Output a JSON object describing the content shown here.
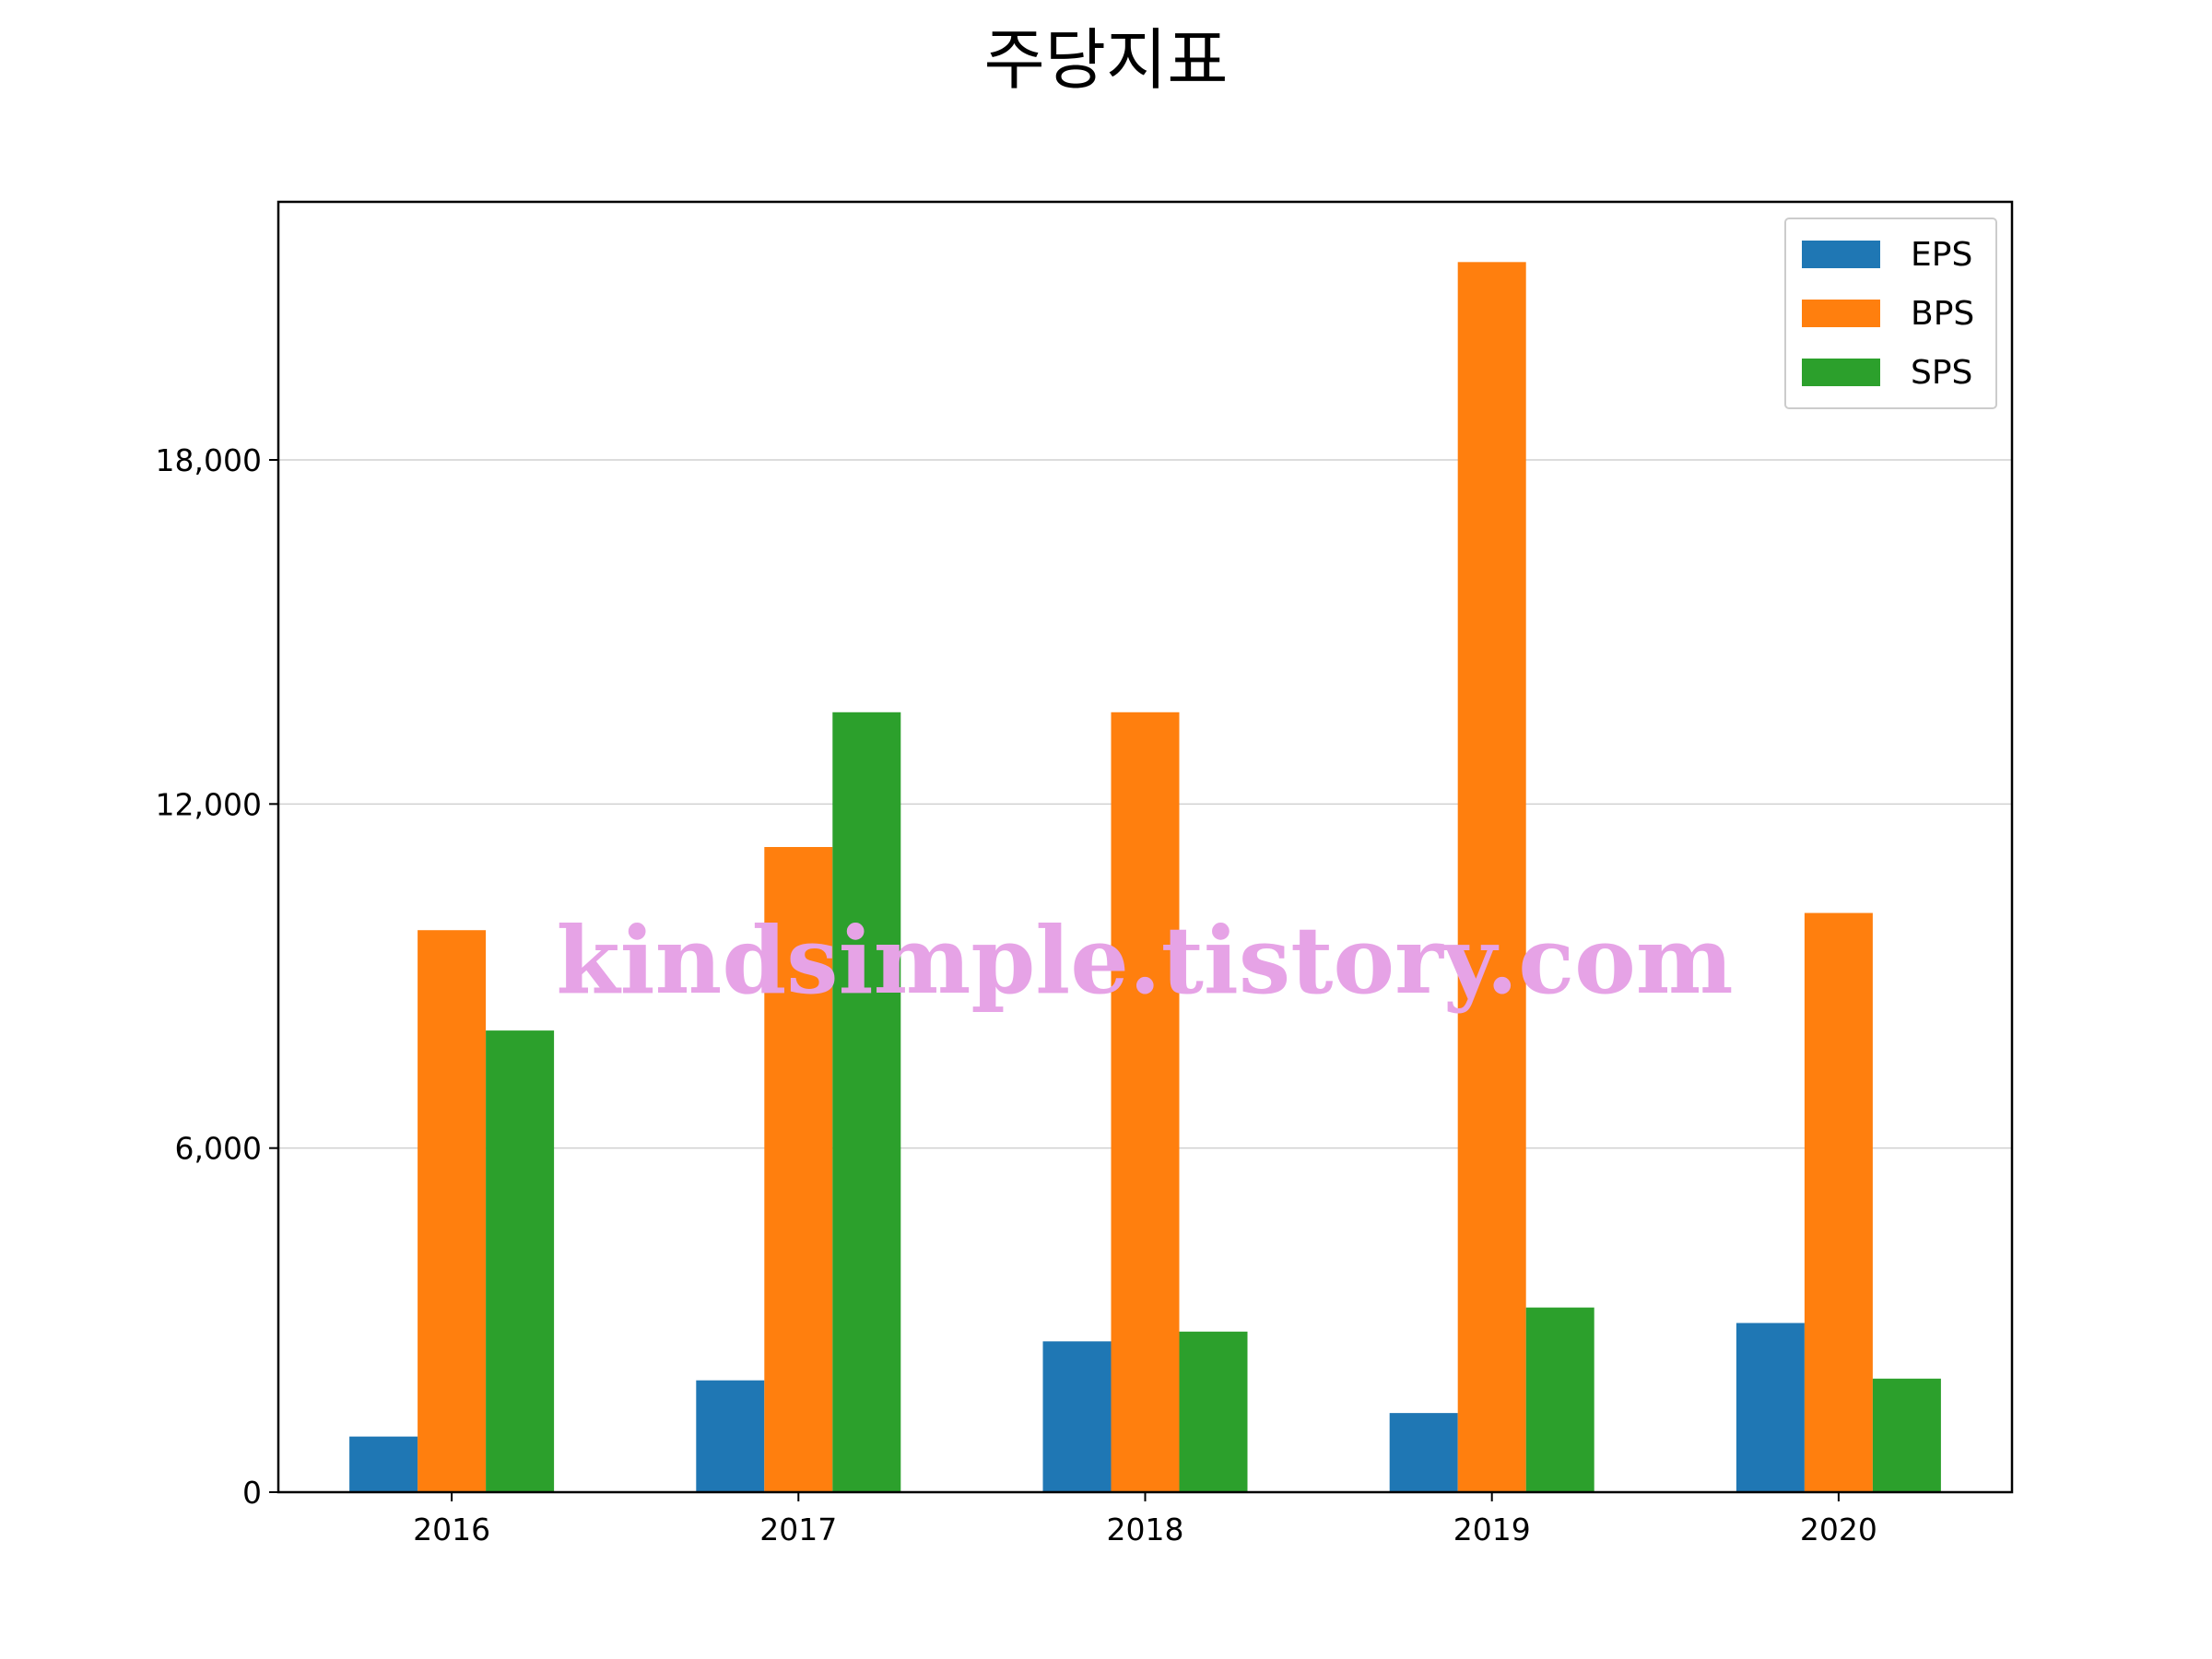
{
  "chart_data": {
    "type": "bar",
    "title": "주당지표",
    "xlabel": "",
    "ylabel": "",
    "categories": [
      "2016",
      "2017",
      "2018",
      "2019",
      "2020"
    ],
    "series": [
      {
        "name": "EPS",
        "color": "#1f77b4",
        "values": [
          970,
          1950,
          2630,
          1380,
          2950
        ]
      },
      {
        "name": "BPS",
        "color": "#ff7f0e",
        "values": [
          9800,
          11250,
          13600,
          21450,
          10100
        ]
      },
      {
        "name": "SPS",
        "color": "#2ca02c",
        "values": [
          8050,
          13600,
          2800,
          3220,
          1980
        ]
      }
    ],
    "ylim": [
      0,
      22500
    ],
    "yticks": [
      0,
      6000,
      12000,
      18000
    ],
    "ytick_labels": [
      "0",
      "6,000",
      "12,000",
      "18,000"
    ],
    "grid": "horizontal",
    "legend_position": "top-right"
  },
  "watermark": "kindsimple.tistory.com"
}
